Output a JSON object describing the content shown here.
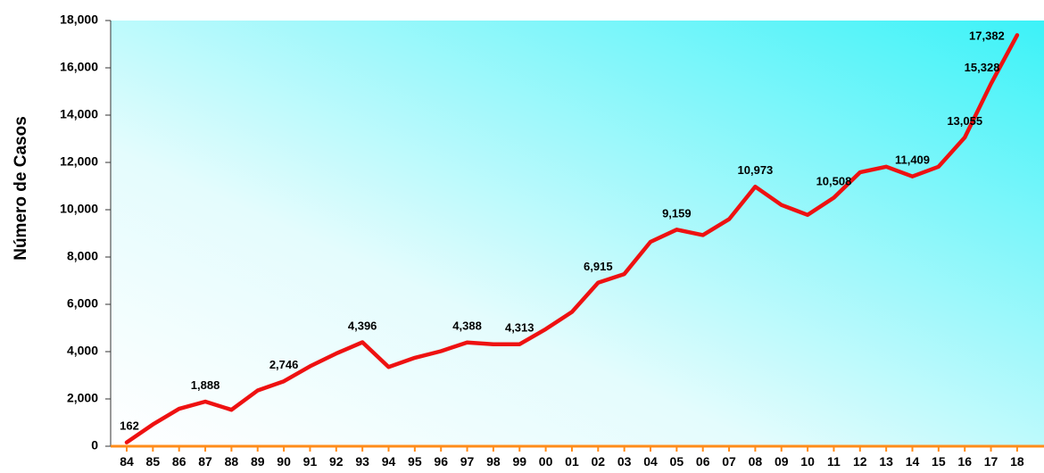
{
  "chart_data": {
    "type": "line",
    "title": "",
    "xlabel": "",
    "ylabel": "Número de Casos",
    "ylim": [
      0,
      18000
    ],
    "yticks": [
      "0",
      "2,000",
      "4,000",
      "6,000",
      "8,000",
      "10,000",
      "12,000",
      "14,000",
      "16,000",
      "18,000"
    ],
    "ytick_values": [
      0,
      2000,
      4000,
      6000,
      8000,
      10000,
      12000,
      14000,
      16000,
      18000
    ],
    "categories": [
      "84",
      "85",
      "86",
      "87",
      "88",
      "89",
      "90",
      "91",
      "92",
      "93",
      "94",
      "95",
      "96",
      "97",
      "98",
      "99",
      "00",
      "01",
      "02",
      "03",
      "04",
      "05",
      "06",
      "07",
      "08",
      "09",
      "10",
      "11",
      "12",
      "13",
      "14",
      "15",
      "16",
      "17",
      "18"
    ],
    "values": [
      162,
      920,
      1580,
      1888,
      1540,
      2360,
      2746,
      3380,
      3920,
      4396,
      3350,
      3740,
      4020,
      4388,
      4310,
      4313,
      4950,
      5680,
      6915,
      7280,
      8640,
      9159,
      8930,
      9600,
      10973,
      10200,
      9780,
      10508,
      11580,
      11820,
      11409,
      11820,
      13055,
      15328,
      17382
    ],
    "data_labels": [
      {
        "index": 0,
        "text": "162"
      },
      {
        "index": 3,
        "text": "1,888"
      },
      {
        "index": 6,
        "text": "2,746"
      },
      {
        "index": 9,
        "text": "4,396"
      },
      {
        "index": 13,
        "text": "4,388"
      },
      {
        "index": 15,
        "text": "4,313"
      },
      {
        "index": 18,
        "text": "6,915"
      },
      {
        "index": 21,
        "text": "9,159"
      },
      {
        "index": 24,
        "text": "10,973"
      },
      {
        "index": 27,
        "text": "10,508"
      },
      {
        "index": 30,
        "text": "11,409"
      },
      {
        "index": 32,
        "text": "13,055"
      },
      {
        "index": 33,
        "text": "15,328"
      },
      {
        "index": 34,
        "text": "17,382"
      }
    ],
    "line_color": "#ee1111",
    "axis_color": "#ff8c1a",
    "background_gradient": [
      "#ffffff",
      "#3cf2f8"
    ],
    "grid": false,
    "legend": "none"
  }
}
